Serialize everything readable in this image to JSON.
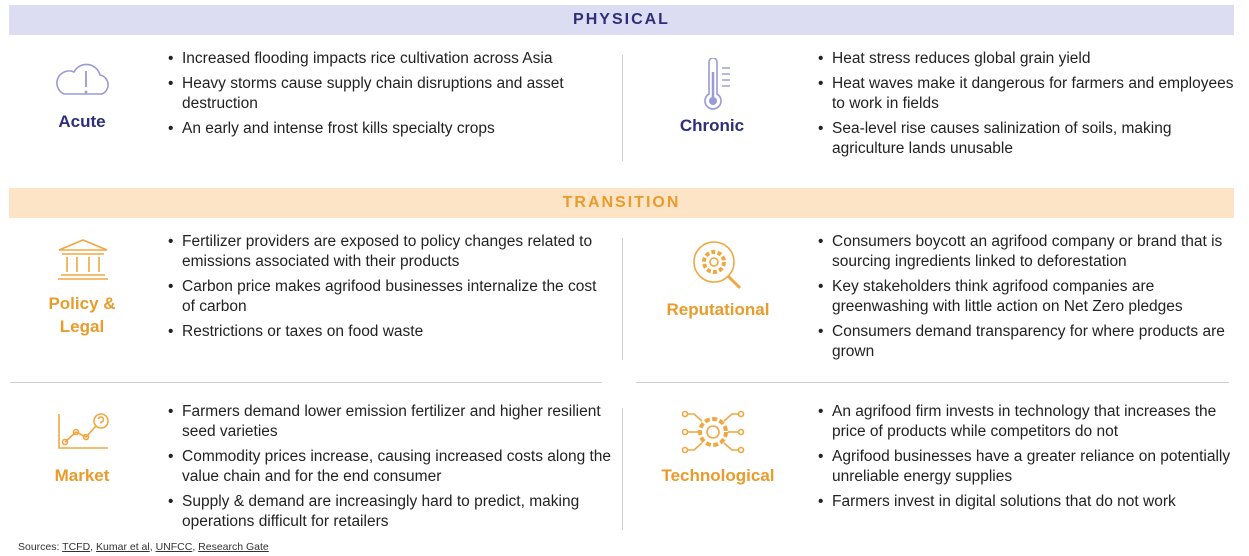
{
  "sections": [
    {
      "title": "PHYSICAL",
      "categories": [
        {
          "label": "Acute",
          "bullets": [
            "Increased flooding impacts rice cultivation across Asia",
            "Heavy storms cause supply chain disruptions and asset destruction",
            "An early and intense frost kills specialty crops"
          ]
        },
        {
          "label": "Chronic",
          "bullets": [
            "Heat stress reduces global grain yield",
            "Heat waves make it dangerous for farmers and employees to work in fields",
            "Sea-level rise causes salinization of soils, making agriculture lands unusable"
          ]
        }
      ]
    },
    {
      "title": "TRANSITION",
      "categories": [
        {
          "label": "Policy & Legal",
          "bullets": [
            "Fertilizer providers are exposed to policy changes related to emissions associated with their products",
            "Carbon price makes agrifood businesses internalize the cost of carbon",
            "Restrictions or taxes on food waste"
          ]
        },
        {
          "label": "Reputational",
          "bullets": [
            "Consumers boycott an agrifood company or brand that is sourcing ingredients linked to deforestation",
            "Key stakeholders think agrifood companies are greenwashing with little action on Net Zero pledges",
            "Consumers demand transparency for where products are grown"
          ]
        },
        {
          "label": "Market",
          "bullets": [
            "Farmers demand lower emission fertilizer and higher resilient seed varieties",
            "Commodity prices increase, causing increased costs along the value chain and for the end consumer",
            "Supply & demand are increasingly hard to predict, making operations difficult for retailers"
          ]
        },
        {
          "label": "Technological",
          "bullets": [
            "An agrifood firm invests in technology that increases the price of products while competitors do not",
            "Agrifood businesses have a greater reliance on potentially unreliable energy supplies",
            "Farmers invest in digital solutions that do not work"
          ]
        }
      ]
    }
  ],
  "sources": {
    "prefix": "Sources:",
    "separator": ",",
    "links": [
      "TCFD",
      "Kumar et al",
      "UNFCC",
      "Research Gate"
    ]
  }
}
